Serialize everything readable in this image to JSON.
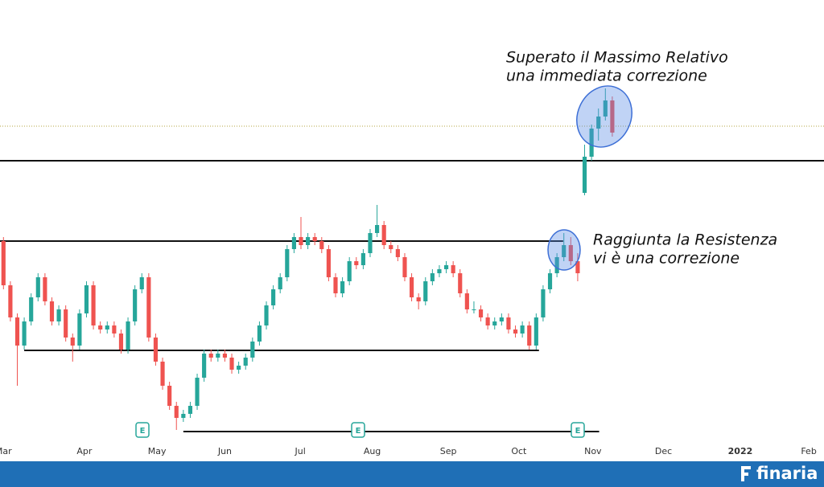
{
  "chart_data": {
    "type": "candlestick",
    "xlim": [
      -0.5,
      118.6
    ],
    "ylim": [
      0,
      545
    ],
    "xticks": [
      {
        "value": 0,
        "label": "Mar"
      },
      {
        "value": 11.7,
        "label": "Apr"
      },
      {
        "value": 22.2,
        "label": "May"
      },
      {
        "value": 32,
        "label": "Jun"
      },
      {
        "value": 42.9,
        "label": "Jul"
      },
      {
        "value": 53.3,
        "label": "Aug"
      },
      {
        "value": 64.3,
        "label": "Sep"
      },
      {
        "value": 74.5,
        "label": "Oct"
      },
      {
        "value": 85.2,
        "label": "Nov"
      },
      {
        "value": 95.4,
        "label": "Dec"
      },
      {
        "value": 106.5,
        "label": "2022"
      },
      {
        "value": 116.4,
        "label": "Feb"
      }
    ],
    "up_color": "#26a69a",
    "down_color": "#ef5350",
    "candles": [
      [
        245,
        250,
        185,
        190
      ],
      [
        190,
        195,
        145,
        150
      ],
      [
        150,
        155,
        65,
        115
      ],
      [
        115,
        150,
        110,
        145
      ],
      [
        145,
        180,
        140,
        175
      ],
      [
        175,
        205,
        170,
        200
      ],
      [
        200,
        205,
        165,
        170
      ],
      [
        170,
        175,
        140,
        145
      ],
      [
        145,
        165,
        140,
        160
      ],
      [
        160,
        165,
        120,
        125
      ],
      [
        125,
        130,
        95,
        115
      ],
      [
        115,
        160,
        110,
        155
      ],
      [
        155,
        195,
        150,
        190
      ],
      [
        190,
        195,
        135,
        140
      ],
      [
        140,
        145,
        130,
        135
      ],
      [
        135,
        145,
        130,
        140
      ],
      [
        140,
        145,
        125,
        130
      ],
      [
        130,
        135,
        105,
        110
      ],
      [
        110,
        150,
        105,
        145
      ],
      [
        145,
        190,
        140,
        185
      ],
      [
        185,
        205,
        180,
        200
      ],
      [
        200,
        205,
        120,
        125
      ],
      [
        125,
        130,
        90,
        95
      ],
      [
        95,
        100,
        60,
        65
      ],
      [
        65,
        70,
        35,
        40
      ],
      [
        40,
        45,
        10,
        25
      ],
      [
        25,
        35,
        20,
        30
      ],
      [
        30,
        45,
        25,
        40
      ],
      [
        40,
        80,
        35,
        75
      ],
      [
        75,
        110,
        70,
        105
      ],
      [
        105,
        110,
        95,
        100
      ],
      [
        100,
        110,
        95,
        105
      ],
      [
        105,
        110,
        95,
        100
      ],
      [
        100,
        105,
        80,
        85
      ],
      [
        85,
        95,
        80,
        90
      ],
      [
        90,
        105,
        85,
        100
      ],
      [
        100,
        125,
        95,
        120
      ],
      [
        120,
        145,
        115,
        140
      ],
      [
        140,
        170,
        135,
        165
      ],
      [
        165,
        190,
        160,
        185
      ],
      [
        185,
        205,
        180,
        200
      ],
      [
        200,
        240,
        195,
        235
      ],
      [
        235,
        255,
        230,
        250
      ],
      [
        250,
        275,
        235,
        240
      ],
      [
        240,
        255,
        235,
        250
      ],
      [
        250,
        255,
        240,
        245
      ],
      [
        245,
        250,
        230,
        235
      ],
      [
        235,
        240,
        195,
        200
      ],
      [
        200,
        205,
        175,
        180
      ],
      [
        180,
        200,
        175,
        195
      ],
      [
        195,
        225,
        190,
        220
      ],
      [
        220,
        225,
        210,
        215
      ],
      [
        215,
        235,
        210,
        230
      ],
      [
        230,
        260,
        225,
        255
      ],
      [
        255,
        290,
        250,
        265
      ],
      [
        265,
        270,
        235,
        240
      ],
      [
        240,
        245,
        230,
        235
      ],
      [
        235,
        240,
        220,
        225
      ],
      [
        225,
        230,
        195,
        200
      ],
      [
        200,
        205,
        170,
        175
      ],
      [
        175,
        180,
        160,
        170
      ],
      [
        170,
        200,
        165,
        195
      ],
      [
        195,
        210,
        190,
        205
      ],
      [
        205,
        215,
        200,
        210
      ],
      [
        210,
        220,
        205,
        215
      ],
      [
        215,
        220,
        200,
        205
      ],
      [
        205,
        210,
        175,
        180
      ],
      [
        180,
        185,
        155,
        160
      ],
      [
        160,
        170,
        155,
        160
      ],
      [
        160,
        165,
        145,
        150
      ],
      [
        150,
        155,
        135,
        140
      ],
      [
        140,
        150,
        135,
        145
      ],
      [
        145,
        155,
        140,
        150
      ],
      [
        150,
        155,
        130,
        135
      ],
      [
        135,
        140,
        125,
        130
      ],
      [
        130,
        145,
        125,
        140
      ],
      [
        140,
        145,
        110,
        115
      ],
      [
        115,
        155,
        110,
        150
      ],
      [
        150,
        190,
        145,
        185
      ],
      [
        185,
        210,
        180,
        205
      ],
      [
        205,
        230,
        200,
        225
      ],
      [
        225,
        255,
        220,
        240
      ],
      [
        240,
        250,
        215,
        220
      ],
      [
        220,
        230,
        195,
        205
      ],
      [
        305,
        365,
        302,
        350
      ],
      [
        350,
        390,
        345,
        385
      ],
      [
        385,
        410,
        370,
        400
      ],
      [
        400,
        435,
        395,
        420
      ],
      [
        420,
        425,
        375,
        380
      ]
    ],
    "levels": [
      {
        "value": 388,
        "color": "#b5a642",
        "style": "dotted"
      },
      {
        "value": 345,
        "color": "#111111",
        "style": "solid"
      },
      {
        "value": 245,
        "from": -0.5,
        "to": 80.9,
        "color": "#111111",
        "style": "solid"
      },
      {
        "value": 109,
        "from": 3,
        "to": 77.4,
        "color": "#111111",
        "style": "solid"
      },
      {
        "value": 8,
        "from": 26,
        "to": 86.1,
        "color": "#111111",
        "style": "solid"
      }
    ],
    "annotations": [
      {
        "lines": [
          "Superato il Massimo Relativo",
          "una immediata correzione"
        ]
      },
      {
        "lines": [
          "Raggiunta la Resistenza",
          "vi è una correzione"
        ]
      }
    ],
    "earnings_marker": "E",
    "brand": "finaria"
  }
}
